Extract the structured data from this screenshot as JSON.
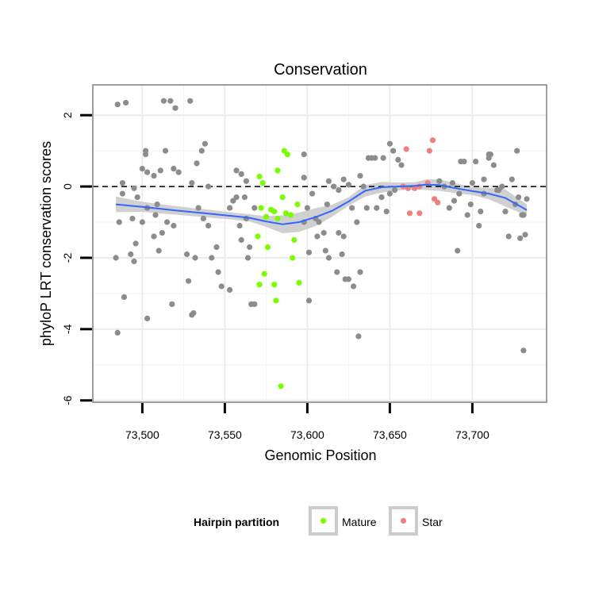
{
  "chart_data": {
    "type": "scatter",
    "title": "Conservation",
    "xlabel": "Genomic Position",
    "ylabel": "phyloP LRT conservation scores",
    "xlim": [
      73470,
      73745
    ],
    "ylim": [
      -6.05,
      2.85
    ],
    "x_ticks": [
      73500,
      73550,
      73600,
      73650,
      73700
    ],
    "x_tick_labels": [
      "73,500",
      "73,550",
      "73,600",
      "73,650",
      "73,700"
    ],
    "y_ticks": [
      -6,
      -4,
      -2,
      0,
      2
    ],
    "y_tick_labels": [
      "-6",
      "-4",
      "-2",
      "0",
      "2"
    ],
    "reference_line_y": 0,
    "grid": true,
    "legend": {
      "title": "Hairpin partition",
      "placement": "bottom",
      "entries": [
        {
          "label": "Mature",
          "color": "#7cfc00"
        },
        {
          "label": "Star",
          "color": "#f08080"
        }
      ]
    },
    "colors": {
      "other": "#8c8c8c",
      "Mature": "#7cfc00",
      "Star": "#f08080",
      "smooth": "#3366ff",
      "band": "#c8c8c8"
    },
    "series": [
      {
        "name": "Mature",
        "points": [
          [
            73571,
            0.28
          ],
          [
            73573,
            0.1
          ],
          [
            73582,
            0.45
          ],
          [
            73586,
            1.0
          ],
          [
            73588,
            0.9
          ],
          [
            73570,
            -1.4
          ],
          [
            73572,
            -0.6
          ],
          [
            73575,
            -0.85
          ],
          [
            73578,
            -0.65
          ],
          [
            73580,
            -0.7
          ],
          [
            73582,
            -0.9
          ],
          [
            73585,
            -0.3
          ],
          [
            73587,
            -0.75
          ],
          [
            73590,
            -0.8
          ],
          [
            73594,
            -0.5
          ],
          [
            73576,
            -1.7
          ],
          [
            73592,
            -1.5
          ],
          [
            73591,
            -2.0
          ],
          [
            73574,
            -2.45
          ],
          [
            73571,
            -2.75
          ],
          [
            73580,
            -2.75
          ],
          [
            73595,
            -2.7
          ],
          [
            73581,
            -3.2
          ],
          [
            73584,
            -5.6
          ]
        ]
      },
      {
        "name": "Star",
        "points": [
          [
            73660,
            1.05
          ],
          [
            73674,
            1.0
          ],
          [
            73676,
            1.3
          ],
          [
            73673,
            0.1
          ],
          [
            73668,
            0.0
          ],
          [
            73665,
            -0.05
          ],
          [
            73661,
            -0.05
          ],
          [
            73662,
            -0.75
          ],
          [
            73668,
            -0.75
          ],
          [
            73677,
            -0.35
          ],
          [
            73679,
            -0.45
          ],
          [
            73658,
            0.0
          ]
        ]
      },
      {
        "name": "Other",
        "points": [
          [
            73485,
            2.3
          ],
          [
            73490,
            2.35
          ],
          [
            73513,
            2.4
          ],
          [
            73517,
            2.4
          ],
          [
            73520,
            2.2
          ],
          [
            73529,
            2.4
          ],
          [
            73514,
            1.0
          ],
          [
            73502,
            1.0
          ],
          [
            73502,
            0.9
          ],
          [
            73519,
            0.5
          ],
          [
            73522,
            0.4
          ],
          [
            73500,
            0.5
          ],
          [
            73511,
            0.45
          ],
          [
            73533,
            0.65
          ],
          [
            73536,
            1.0
          ],
          [
            73538,
            1.2
          ],
          [
            73540,
            0.0
          ],
          [
            73530,
            0.1
          ],
          [
            73507,
            0.3
          ],
          [
            73503,
            0.4
          ],
          [
            73488,
            0.1
          ],
          [
            73495,
            -0.05
          ],
          [
            73497,
            -0.3
          ],
          [
            73486,
            -1.0
          ],
          [
            73488,
            -0.2
          ],
          [
            73494,
            -0.9
          ],
          [
            73496,
            -1.6
          ],
          [
            73493,
            -1.9
          ],
          [
            73495,
            -2.1
          ],
          [
            73484,
            -2.0
          ],
          [
            73489,
            -3.1
          ],
          [
            73485,
            -4.1
          ],
          [
            73503,
            -3.7
          ],
          [
            73500,
            -1.0
          ],
          [
            73503,
            -0.6
          ],
          [
            73508,
            -0.8
          ],
          [
            73509,
            -0.5
          ],
          [
            73507,
            -1.4
          ],
          [
            73510,
            -1.8
          ],
          [
            73512,
            -1.3
          ],
          [
            73519,
            -1.1
          ],
          [
            73515,
            -1.0
          ],
          [
            73518,
            -3.3
          ],
          [
            73527,
            -1.9
          ],
          [
            73532,
            -2.0
          ],
          [
            73528,
            -2.65
          ],
          [
            73530,
            -3.6
          ],
          [
            73531,
            -3.55
          ],
          [
            73534,
            -0.6
          ],
          [
            73537,
            -0.9
          ],
          [
            73540,
            -1.1
          ],
          [
            73542,
            -2.0
          ],
          [
            73545,
            -1.7
          ],
          [
            73546,
            -2.4
          ],
          [
            73548,
            -2.8
          ],
          [
            73553,
            -2.9
          ],
          [
            73553,
            -0.6
          ],
          [
            73555,
            -0.4
          ],
          [
            73557,
            -0.3
          ],
          [
            73560,
            -1.5
          ],
          [
            73562,
            -0.3
          ],
          [
            73563,
            -0.9
          ],
          [
            73565,
            -1.7
          ],
          [
            73566,
            -3.3
          ],
          [
            73568,
            -3.3
          ],
          [
            73557,
            0.45
          ],
          [
            73560,
            0.35
          ],
          [
            73563,
            0.15
          ],
          [
            73559,
            -1.1
          ],
          [
            73564,
            -2.0
          ],
          [
            73568,
            -0.6
          ],
          [
            73598,
            0.25
          ],
          [
            73598,
            0.9
          ],
          [
            73598,
            -1.0
          ],
          [
            73600,
            -0.6
          ],
          [
            73603,
            -0.2
          ],
          [
            73605,
            -0.9
          ],
          [
            73606,
            -1.4
          ],
          [
            73607,
            -1.0
          ],
          [
            73601,
            -1.85
          ],
          [
            73601,
            -3.2
          ],
          [
            73610,
            -1.3
          ],
          [
            73611,
            -1.8
          ],
          [
            73612,
            -0.5
          ],
          [
            73613,
            -2.0
          ],
          [
            73618,
            -2.4
          ],
          [
            73619,
            -1.3
          ],
          [
            73621,
            -1.9
          ],
          [
            73622,
            -1.4
          ],
          [
            73623,
            -2.6
          ],
          [
            73625,
            -2.6
          ],
          [
            73627,
            -0.6
          ],
          [
            73628,
            -2.8
          ],
          [
            73631,
            -4.2
          ],
          [
            73632,
            -2.4
          ],
          [
            73613,
            0.15
          ],
          [
            73616,
            0.0
          ],
          [
            73619,
            -0.1
          ],
          [
            73622,
            0.2
          ],
          [
            73625,
            0.05
          ],
          [
            73632,
            0.3
          ],
          [
            73637,
            0.8
          ],
          [
            73639,
            0.8
          ],
          [
            73641,
            0.8
          ],
          [
            73646,
            0.8
          ],
          [
            73650,
            1.2
          ],
          [
            73652,
            1.0
          ],
          [
            73655,
            0.75
          ],
          [
            73657,
            0.6
          ],
          [
            73653,
            -0.1
          ],
          [
            73650,
            -0.2
          ],
          [
            73648,
            -0.7
          ],
          [
            73645,
            -0.3
          ],
          [
            73642,
            -0.6
          ],
          [
            73636,
            -0.6
          ],
          [
            73630,
            -1.0
          ],
          [
            73634,
            0.0
          ],
          [
            73680,
            0.15
          ],
          [
            73683,
            0.0
          ],
          [
            73686,
            -0.6
          ],
          [
            73689,
            -0.4
          ],
          [
            73692,
            -0.2
          ],
          [
            73695,
            0.7
          ],
          [
            73697,
            -0.8
          ],
          [
            73699,
            -0.5
          ],
          [
            73700,
            0.1
          ],
          [
            73702,
            0.7
          ],
          [
            73704,
            -1.1
          ],
          [
            73705,
            -0.7
          ],
          [
            73707,
            0.2
          ],
          [
            73710,
            0.9
          ],
          [
            73713,
            0.6
          ],
          [
            73715,
            -0.1
          ],
          [
            73718,
            0.0
          ],
          [
            73720,
            -0.7
          ],
          [
            73722,
            -1.4
          ],
          [
            73724,
            0.2
          ],
          [
            73726,
            -0.5
          ],
          [
            73727,
            1.0
          ],
          [
            73728,
            -0.3
          ],
          [
            73730,
            -0.8
          ],
          [
            73731,
            -0.8
          ],
          [
            73732,
            -1.35
          ],
          [
            73733,
            -0.35
          ],
          [
            73731,
            -4.6
          ],
          [
            73729,
            -1.45
          ],
          [
            73691,
            -1.8
          ],
          [
            73693,
            0.7
          ],
          [
            73688,
            0.1
          ],
          [
            73710,
            0.8
          ],
          [
            73711,
            0.9
          ],
          [
            73707,
            -0.2
          ],
          [
            73716,
            -0.1
          ]
        ]
      }
    ],
    "smooth": {
      "x": [
        73484,
        73500,
        73520,
        73540,
        73555,
        73565,
        73575,
        73585,
        73595,
        73605,
        73615,
        73625,
        73635,
        73645,
        73655,
        73665,
        73672,
        73680,
        73690,
        73700,
        73710,
        73720,
        73733
      ],
      "y": [
        -0.5,
        -0.57,
        -0.67,
        -0.76,
        -0.83,
        -0.88,
        -0.98,
        -1.06,
        -1.0,
        -0.86,
        -0.68,
        -0.42,
        -0.12,
        -0.02,
        0.0,
        0.02,
        0.05,
        0.04,
        -0.05,
        -0.13,
        -0.2,
        -0.32,
        -0.66
      ],
      "lower": [
        -0.72,
        -0.71,
        -0.79,
        -0.87,
        -0.93,
        -0.98,
        -1.13,
        -1.31,
        -1.27,
        -1.11,
        -0.85,
        -0.54,
        -0.28,
        -0.17,
        -0.11,
        -0.08,
        -0.1,
        -0.12,
        -0.19,
        -0.24,
        -0.36,
        -0.56,
        -0.82
      ],
      "upper": [
        -0.28,
        -0.43,
        -0.55,
        -0.65,
        -0.73,
        -0.78,
        -0.83,
        -0.81,
        -0.73,
        -0.61,
        -0.51,
        -0.3,
        0.04,
        0.13,
        0.11,
        0.12,
        0.2,
        0.2,
        0.09,
        -0.02,
        -0.04,
        -0.08,
        -0.5
      ]
    }
  }
}
